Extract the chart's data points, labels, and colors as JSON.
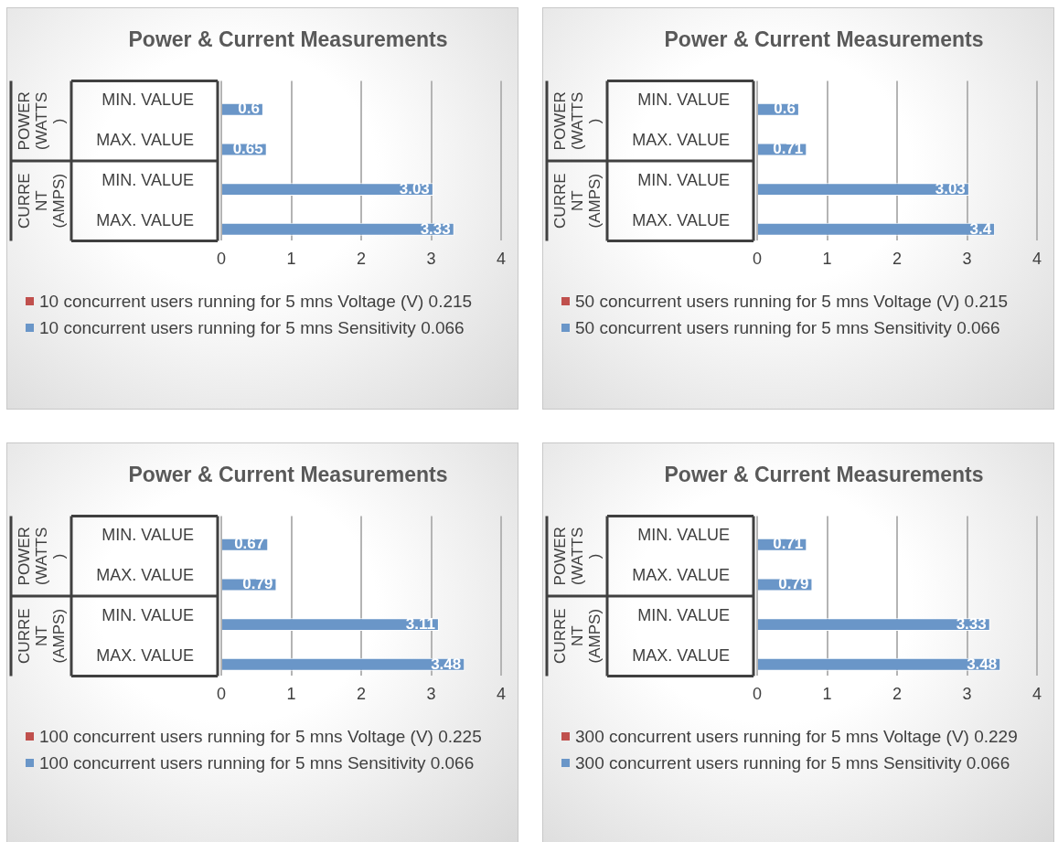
{
  "chart_data": [
    {
      "type": "bar",
      "orientation": "horizontal",
      "title": "Power & Current Measurements",
      "categories": [
        "MIN. VALUE",
        "MAX. VALUE",
        "MIN. VALUE",
        "MAX. VALUE"
      ],
      "annotations": [
        "POWER (WATTS )",
        "CURRE NT (AMPS)"
      ],
      "series": [
        {
          "name": "10 concurrent users running for 5 mns Voltage (V) 0.215",
          "color": "#c0504d",
          "values": [
            null,
            null,
            null,
            null
          ]
        },
        {
          "name": "10 concurrent users running for 5 mns Sensitivity 0.066",
          "color": "#6a96c8",
          "values": [
            0.6,
            0.65,
            3.03,
            3.33
          ]
        }
      ],
      "xlim": [
        0,
        4
      ],
      "xticks": [
        0,
        1,
        2,
        3,
        4
      ],
      "grid": "x",
      "legend": "bottom",
      "data_labels": true
    },
    {
      "type": "bar",
      "orientation": "horizontal",
      "title": "Power & Current Measurements",
      "categories": [
        "MIN. VALUE",
        "MAX. VALUE",
        "MIN. VALUE",
        "MAX. VALUE"
      ],
      "annotations": [
        "POWER (WATTS )",
        "CURRE NT (AMPS)"
      ],
      "series": [
        {
          "name": "50 concurrent users running for 5 mns Voltage (V) 0.215",
          "color": "#c0504d",
          "values": [
            null,
            null,
            null,
            null
          ]
        },
        {
          "name": "50 concurrent users running for 5 mns Sensitivity 0.066",
          "color": "#6a96c8",
          "values": [
            0.6,
            0.71,
            3.03,
            3.4
          ]
        }
      ],
      "xlim": [
        0,
        4
      ],
      "xticks": [
        0,
        1,
        2,
        3,
        4
      ],
      "grid": "x",
      "legend": "bottom",
      "data_labels": true
    },
    {
      "type": "bar",
      "orientation": "horizontal",
      "title": "Power & Current Measurements",
      "categories": [
        "MIN. VALUE",
        "MAX. VALUE",
        "MIN. VALUE",
        "MAX. VALUE"
      ],
      "annotations": [
        "POWER (WATTS )",
        "CURRE NT (AMPS)"
      ],
      "series": [
        {
          "name": "100 concurrent users running for 5 mns Voltage (V) 0.225",
          "color": "#c0504d",
          "values": [
            null,
            null,
            null,
            null
          ]
        },
        {
          "name": "100 concurrent users running for 5 mns Sensitivity 0.066",
          "color": "#6a96c8",
          "values": [
            0.67,
            0.79,
            3.11,
            3.48
          ]
        }
      ],
      "xlim": [
        0,
        4
      ],
      "xticks": [
        0,
        1,
        2,
        3,
        4
      ],
      "grid": "x",
      "legend": "bottom",
      "data_labels": true
    },
    {
      "type": "bar",
      "orientation": "horizontal",
      "title": "Power & Current Measurements",
      "categories": [
        "MIN. VALUE",
        "MAX. VALUE",
        "MIN. VALUE",
        "MAX. VALUE"
      ],
      "annotations": [
        "POWER (WATTS )",
        "CURRE NT (AMPS)"
      ],
      "series": [
        {
          "name": "300 concurrent users running for 5 mns Voltage (V) 0.229",
          "color": "#c0504d",
          "values": [
            null,
            null,
            null,
            null
          ]
        },
        {
          "name": "300 concurrent users running for 5 mns Sensitivity 0.066",
          "color": "#6a96c8",
          "values": [
            0.71,
            0.79,
            3.33,
            3.48
          ]
        }
      ],
      "xlim": [
        0,
        4
      ],
      "xticks": [
        0,
        1,
        2,
        3,
        4
      ],
      "grid": "x",
      "legend": "bottom",
      "data_labels": true
    }
  ]
}
